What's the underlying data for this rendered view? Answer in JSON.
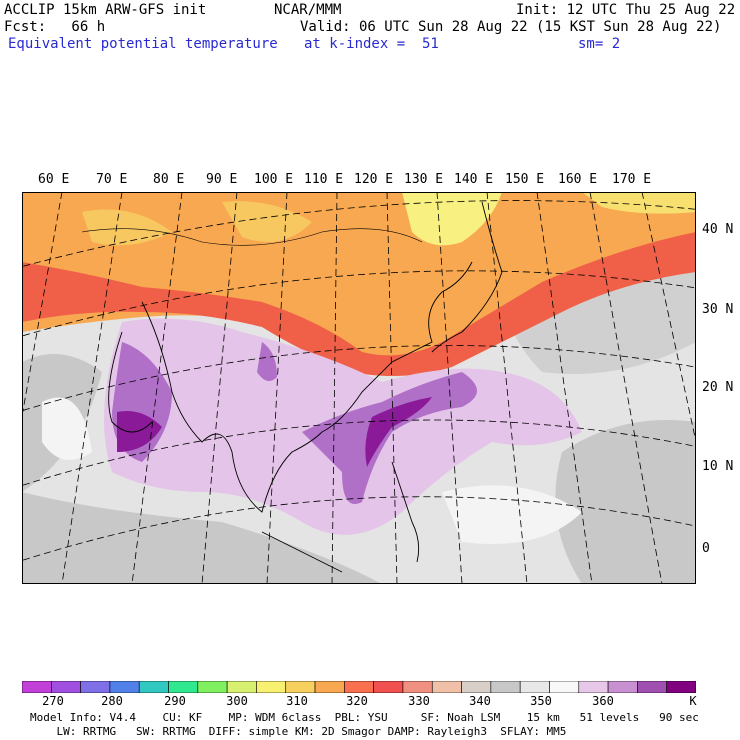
{
  "header": {
    "line1_left": "ACCLIP 15km ARW-GFS init",
    "line1_center": "NCAR/MMM",
    "line1_right": "Init: 12 UTC Thu 25 Aug 22",
    "line2_left": "Fcst:   66 h",
    "line2_right": "Valid: 06 UTC Sun 28 Aug 22 (15 KST Sun 28 Aug 22)",
    "line3_left": "Equivalent potential temperature",
    "line3_center": "at k-index =  51",
    "line3_right": "sm= 2"
  },
  "map": {
    "lon_labels": [
      "60 E",
      "70 E",
      "80 E",
      "90 E",
      "100 E",
      "110 E",
      "120 E",
      "130 E",
      "140 E",
      "150 E",
      "160 E",
      "170 E"
    ],
    "lat_labels": [
      "40 N",
      "30 N",
      "20 N",
      "10 N",
      "0"
    ]
  },
  "colorbar": {
    "labels": [
      "270",
      "280",
      "290",
      "300",
      "310",
      "320",
      "330",
      "340",
      "350",
      "360",
      "K"
    ],
    "colors": [
      "#c040d8",
      "#a050e0",
      "#8070e8",
      "#5080e8",
      "#30c8c0",
      "#30e890",
      "#80f060",
      "#d8f070",
      "#f8f070",
      "#f8d060",
      "#f8a850",
      "#f87050",
      "#f05050",
      "#f09080",
      "#f0c0a8",
      "#d8d0c8",
      "#c8c8c8",
      "#e8e8e8",
      "#f8f8f8",
      "#e8c8e8",
      "#c890d0",
      "#a050b0",
      "#800080"
    ]
  },
  "footer": {
    "line1": "Model Info: V4.4    CU: KF    MP: WDM 6class  PBL: YSU     SF: Noah LSM    15 km   51 levels   90 sec",
    "line2": "    LW: RRTMG   SW: RRTMG  DIFF: simple KM: 2D Smagor DAMP: Rayleigh3  SFLAY: MM5"
  }
}
